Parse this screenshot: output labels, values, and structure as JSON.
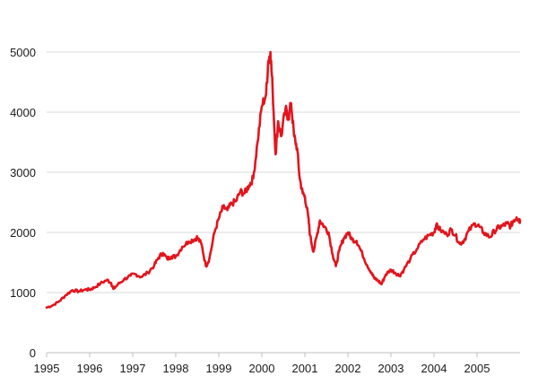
{
  "chart_data": {
    "type": "line",
    "title": "",
    "xlabel": "",
    "ylabel": "",
    "xlim": [
      1995,
      2006
    ],
    "ylim": [
      0,
      5000
    ],
    "y_ticks": [
      "0",
      "1000",
      "2000",
      "3000",
      "4000",
      "5000"
    ],
    "x_ticks": [
      "1995",
      "1996",
      "1997",
      "1998",
      "1999",
      "2000",
      "2001",
      "2002",
      "2003",
      "2004",
      "2005"
    ],
    "grid": "horizontal",
    "legend": "none",
    "series": [
      {
        "color": "#e3141c",
        "points": [
          [
            1995.0,
            750
          ],
          [
            1995.15,
            790
          ],
          [
            1995.3,
            860
          ],
          [
            1995.45,
            960
          ],
          [
            1995.6,
            1040
          ],
          [
            1995.75,
            1020
          ],
          [
            1995.9,
            1050
          ],
          [
            1996.0,
            1050
          ],
          [
            1996.1,
            1080
          ],
          [
            1996.25,
            1150
          ],
          [
            1996.4,
            1210
          ],
          [
            1996.5,
            1160
          ],
          [
            1996.55,
            1060
          ],
          [
            1996.65,
            1130
          ],
          [
            1996.8,
            1220
          ],
          [
            1996.95,
            1280
          ],
          [
            1997.05,
            1310
          ],
          [
            1997.2,
            1260
          ],
          [
            1997.35,
            1330
          ],
          [
            1997.5,
            1450
          ],
          [
            1997.6,
            1580
          ],
          [
            1997.7,
            1660
          ],
          [
            1997.8,
            1560
          ],
          [
            1997.9,
            1600
          ],
          [
            1998.0,
            1600
          ],
          [
            1998.15,
            1760
          ],
          [
            1998.3,
            1850
          ],
          [
            1998.45,
            1890
          ],
          [
            1998.5,
            1920
          ],
          [
            1998.6,
            1800
          ],
          [
            1998.7,
            1440
          ],
          [
            1998.78,
            1560
          ],
          [
            1998.9,
            2000
          ],
          [
            1999.0,
            2230
          ],
          [
            1999.1,
            2420
          ],
          [
            1999.2,
            2370
          ],
          [
            1999.3,
            2480
          ],
          [
            1999.4,
            2520
          ],
          [
            1999.5,
            2680
          ],
          [
            1999.6,
            2650
          ],
          [
            1999.7,
            2780
          ],
          [
            1999.8,
            2900
          ],
          [
            1999.9,
            3500
          ],
          [
            2000.0,
            4100
          ],
          [
            2000.1,
            4300
          ],
          [
            2000.15,
            4850
          ],
          [
            2000.2,
            5000
          ],
          [
            2000.25,
            4400
          ],
          [
            2000.32,
            3300
          ],
          [
            2000.38,
            3850
          ],
          [
            2000.45,
            3600
          ],
          [
            2000.55,
            4050
          ],
          [
            2000.62,
            3900
          ],
          [
            2000.68,
            4150
          ],
          [
            2000.75,
            3600
          ],
          [
            2000.82,
            3400
          ],
          [
            2000.88,
            2900
          ],
          [
            2000.95,
            2650
          ],
          [
            2001.0,
            2600
          ],
          [
            2001.08,
            2250
          ],
          [
            2001.12,
            1950
          ],
          [
            2001.2,
            1680
          ],
          [
            2001.28,
            1950
          ],
          [
            2001.35,
            2200
          ],
          [
            2001.45,
            2100
          ],
          [
            2001.55,
            2000
          ],
          [
            2001.65,
            1620
          ],
          [
            2001.72,
            1440
          ],
          [
            2001.8,
            1700
          ],
          [
            2001.9,
            1900
          ],
          [
            2002.0,
            2000
          ],
          [
            2002.1,
            1880
          ],
          [
            2002.2,
            1860
          ],
          [
            2002.3,
            1700
          ],
          [
            2002.45,
            1450
          ],
          [
            2002.55,
            1330
          ],
          [
            2002.62,
            1230
          ],
          [
            2002.7,
            1200
          ],
          [
            2002.78,
            1140
          ],
          [
            2002.88,
            1300
          ],
          [
            2003.0,
            1380
          ],
          [
            2003.1,
            1330
          ],
          [
            2003.2,
            1280
          ],
          [
            2003.3,
            1380
          ],
          [
            2003.45,
            1560
          ],
          [
            2003.6,
            1720
          ],
          [
            2003.75,
            1880
          ],
          [
            2003.9,
            1960
          ],
          [
            2004.0,
            2000
          ],
          [
            2004.05,
            2120
          ],
          [
            2004.15,
            2040
          ],
          [
            2004.3,
            1960
          ],
          [
            2004.4,
            2050
          ],
          [
            2004.5,
            1950
          ],
          [
            2004.6,
            1810
          ],
          [
            2004.7,
            1870
          ],
          [
            2004.8,
            2020
          ],
          [
            2004.95,
            2150
          ],
          [
            2005.05,
            2100
          ],
          [
            2005.15,
            2000
          ],
          [
            2005.3,
            1920
          ],
          [
            2005.4,
            2020
          ],
          [
            2005.5,
            2080
          ],
          [
            2005.6,
            2110
          ],
          [
            2005.7,
            2150
          ],
          [
            2005.78,
            2100
          ],
          [
            2005.85,
            2200
          ],
          [
            2005.92,
            2250
          ],
          [
            2005.97,
            2210
          ],
          [
            2006.0,
            2200
          ]
        ]
      }
    ]
  }
}
